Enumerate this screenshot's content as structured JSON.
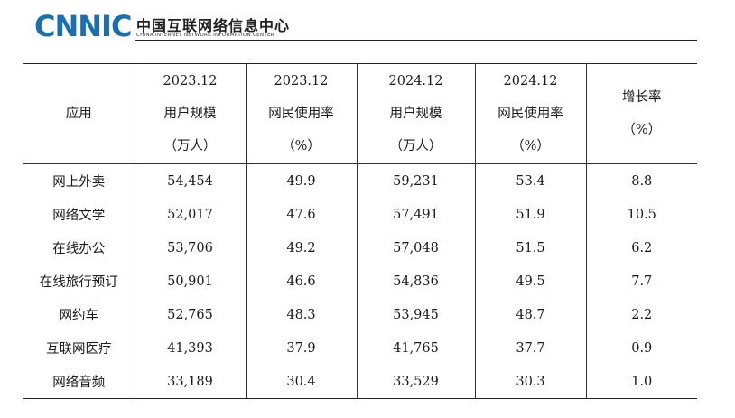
{
  "header": {
    "logo_text": "CNNIC",
    "org_name_cn": "中国互联网络信息中心",
    "org_name_en": "CHINA INTERNET NETWORK INFORMATION CENTER",
    "brand_color": "#1a6fb3"
  },
  "table": {
    "columns": [
      {
        "lines": [
          "应用"
        ]
      },
      {
        "lines": [
          "2023.12",
          "用户规模",
          "（万人）"
        ]
      },
      {
        "lines": [
          "2023.12",
          "网民使用率",
          "（%）"
        ]
      },
      {
        "lines": [
          "2024.12",
          "用户规模",
          "（万人）"
        ]
      },
      {
        "lines": [
          "2024.12",
          "网民使用率",
          "（%）"
        ]
      },
      {
        "lines": [
          "增长率",
          "（%）"
        ]
      }
    ],
    "rows": [
      [
        "网上外卖",
        "54,454",
        "49.9",
        "59,231",
        "53.4",
        "8.8"
      ],
      [
        "网络文学",
        "52,017",
        "47.6",
        "57,491",
        "51.9",
        "10.5"
      ],
      [
        "在线办公",
        "53,706",
        "49.2",
        "57,048",
        "51.5",
        "6.2"
      ],
      [
        "在线旅行预订",
        "50,901",
        "46.6",
        "54,836",
        "49.5",
        "7.7"
      ],
      [
        "网约车",
        "52,765",
        "48.3",
        "53,945",
        "48.7",
        "2.2"
      ],
      [
        "互联网医疗",
        "41,393",
        "37.9",
        "41,765",
        "37.7",
        "0.9"
      ],
      [
        "网络音频",
        "33,189",
        "30.4",
        "33,529",
        "30.3",
        "1.0"
      ]
    ]
  }
}
